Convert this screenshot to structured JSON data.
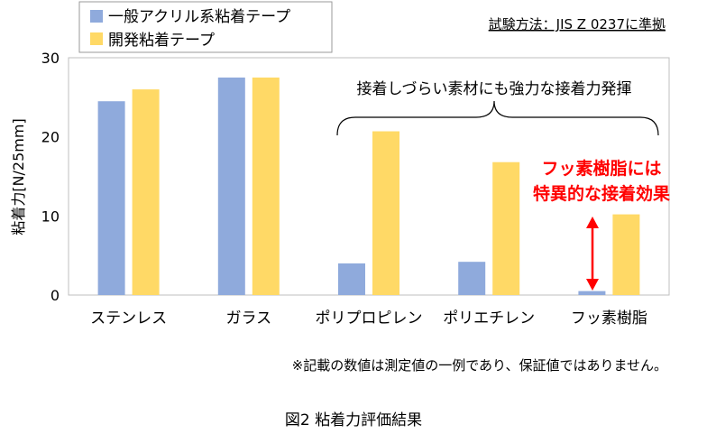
{
  "chart_data": {
    "type": "bar",
    "title": "",
    "ylabel": "粘着力[N/25mm]",
    "xlabel": "",
    "ylim": [
      0,
      30
    ],
    "yticks": [
      0,
      10,
      20,
      30
    ],
    "categories": [
      "ステンレス",
      "ガラス",
      "ポリプロピレン",
      "ポリエチレン",
      "フッ素樹脂"
    ],
    "series": [
      {
        "name": "一般アクリル系粘着テープ",
        "color": "#8FAADC",
        "values": [
          24.5,
          27.5,
          4.0,
          4.2,
          0.5
        ]
      },
      {
        "name": "開発粘着テープ",
        "color": "#FFD966",
        "values": [
          26.0,
          27.5,
          20.7,
          16.8,
          10.2
        ]
      }
    ],
    "grid": false,
    "legend": "top-left"
  },
  "annotations": {
    "test_method": "試験方法：JIS Z 0237に準拠",
    "brace_text": "接着しづらい素材にも強力な接着力発揮",
    "fluoro_line1": "フッ素樹脂には",
    "fluoro_line2": "特異的な接着効果",
    "highlight_color": "#FF0000"
  },
  "footnote": "※記載の数値は測定値の一例であり、保証値ではありません。",
  "caption": "図2  粘着力評価結果"
}
